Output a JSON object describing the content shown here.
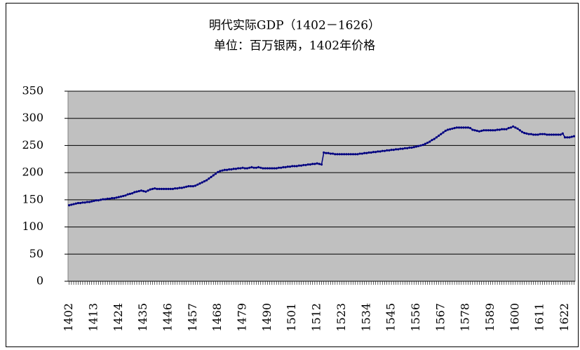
{
  "chart_data": {
    "type": "line",
    "title": "明代实际GDP（1402－1626）",
    "subtitle": "单位：百万银两，1402年价格",
    "x": [
      1402,
      1403,
      1404,
      1405,
      1406,
      1407,
      1408,
      1409,
      1410,
      1411,
      1412,
      1413,
      1414,
      1415,
      1416,
      1417,
      1418,
      1419,
      1420,
      1421,
      1422,
      1423,
      1424,
      1425,
      1426,
      1427,
      1428,
      1429,
      1430,
      1431,
      1432,
      1433,
      1434,
      1435,
      1436,
      1437,
      1438,
      1439,
      1440,
      1441,
      1442,
      1443,
      1444,
      1445,
      1446,
      1447,
      1448,
      1449,
      1450,
      1451,
      1452,
      1453,
      1454,
      1455,
      1456,
      1457,
      1458,
      1459,
      1460,
      1461,
      1462,
      1463,
      1464,
      1465,
      1466,
      1467,
      1468,
      1469,
      1470,
      1471,
      1472,
      1473,
      1474,
      1475,
      1476,
      1477,
      1478,
      1479,
      1480,
      1481,
      1482,
      1483,
      1484,
      1485,
      1486,
      1487,
      1488,
      1489,
      1490,
      1491,
      1492,
      1493,
      1494,
      1495,
      1496,
      1497,
      1498,
      1499,
      1500,
      1501,
      1502,
      1503,
      1504,
      1505,
      1506,
      1507,
      1508,
      1509,
      1510,
      1511,
      1512,
      1513,
      1514,
      1515,
      1516,
      1517,
      1518,
      1519,
      1520,
      1521,
      1522,
      1523,
      1524,
      1525,
      1526,
      1527,
      1528,
      1529,
      1530,
      1531,
      1532,
      1533,
      1534,
      1535,
      1536,
      1537,
      1538,
      1539,
      1540,
      1541,
      1542,
      1543,
      1544,
      1545,
      1546,
      1547,
      1548,
      1549,
      1550,
      1551,
      1552,
      1553,
      1554,
      1555,
      1556,
      1557,
      1558,
      1559,
      1560,
      1561,
      1562,
      1563,
      1564,
      1565,
      1566,
      1567,
      1568,
      1569,
      1570,
      1571,
      1572,
      1573,
      1574,
      1575,
      1576,
      1577,
      1578,
      1579,
      1580,
      1581,
      1582,
      1583,
      1584,
      1585,
      1586,
      1587,
      1588,
      1589,
      1590,
      1591,
      1592,
      1593,
      1594,
      1595,
      1596,
      1597,
      1598,
      1599,
      1600,
      1601,
      1602,
      1603,
      1604,
      1605,
      1606,
      1607,
      1608,
      1609,
      1610,
      1611,
      1612,
      1613,
      1614,
      1615,
      1616,
      1617,
      1618,
      1619,
      1620,
      1621,
      1622,
      1623,
      1624,
      1625,
      1626
    ],
    "series": [
      {
        "color": "#000080",
        "values": [
          140,
          141,
          142,
          143,
          144,
          144,
          145,
          145,
          146,
          146,
          147,
          148,
          149,
          149,
          150,
          151,
          151,
          152,
          152,
          153,
          153,
          154,
          155,
          156,
          157,
          158,
          160,
          161,
          162,
          164,
          165,
          166,
          167,
          166,
          165,
          167,
          169,
          170,
          171,
          170,
          170,
          170,
          170,
          170,
          170,
          170,
          170,
          171,
          171,
          172,
          172,
          173,
          174,
          175,
          175,
          175,
          176,
          178,
          180,
          182,
          184,
          186,
          189,
          192,
          195,
          198,
          201,
          203,
          204,
          205,
          205,
          206,
          206,
          207,
          207,
          208,
          208,
          209,
          208,
          208,
          209,
          210,
          209,
          209,
          210,
          209,
          208,
          208,
          208,
          208,
          208,
          208,
          208,
          209,
          209,
          210,
          210,
          211,
          211,
          212,
          212,
          212,
          213,
          213,
          214,
          214,
          215,
          215,
          216,
          216,
          217,
          216,
          215,
          237,
          236,
          236,
          235,
          235,
          234,
          234,
          234,
          234,
          234,
          234,
          234,
          234,
          234,
          234,
          234,
          235,
          235,
          236,
          236,
          237,
          237,
          238,
          238,
          239,
          239,
          240,
          240,
          241,
          241,
          242,
          242,
          243,
          243,
          244,
          244,
          245,
          245,
          246,
          246,
          247,
          248,
          249,
          250,
          251,
          253,
          255,
          257,
          260,
          262,
          265,
          268,
          271,
          274,
          277,
          279,
          280,
          281,
          282,
          283,
          283,
          283,
          283,
          283,
          283,
          282,
          279,
          278,
          277,
          276,
          277,
          278,
          278,
          278,
          278,
          278,
          278,
          279,
          279,
          280,
          280,
          280,
          282,
          283,
          285,
          283,
          281,
          278,
          275,
          273,
          272,
          271,
          271,
          270,
          270,
          270,
          271,
          271,
          271,
          270,
          270,
          270,
          270,
          270,
          270,
          270,
          272,
          265,
          265,
          265,
          266,
          267
        ]
      }
    ],
    "xlim": [
      1402,
      1626
    ],
    "xticks": [
      1402,
      1413,
      1424,
      1435,
      1446,
      1457,
      1468,
      1479,
      1490,
      1501,
      1512,
      1523,
      1534,
      1545,
      1556,
      1567,
      1578,
      1589,
      1600,
      1611,
      1622
    ],
    "ylim": [
      0,
      350
    ],
    "yticks": [
      0,
      50,
      100,
      150,
      200,
      250,
      300,
      350
    ],
    "grid": true
  }
}
